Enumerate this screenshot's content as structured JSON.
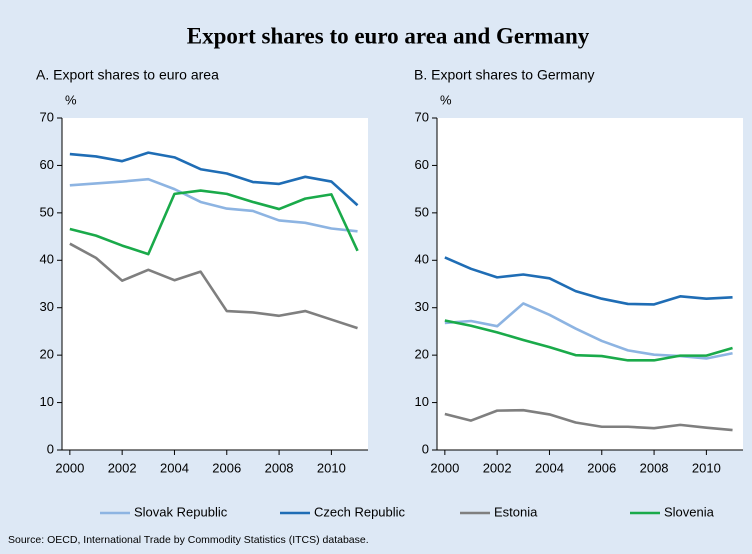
{
  "title": "Export shares to euro area and Germany",
  "source": "Source: OECD, International Trade by Commodity Statistics (ITCS) database.",
  "chart_data": [
    {
      "type": "line",
      "title": "A. Export shares to euro area",
      "ylabel": "%",
      "x": [
        2000,
        2001,
        2002,
        2003,
        2004,
        2005,
        2006,
        2007,
        2008,
        2009,
        2010,
        2011
      ],
      "xlim": [
        1999.7,
        2011.4
      ],
      "xticks": [
        2000,
        2002,
        2004,
        2006,
        2008,
        2010
      ],
      "ylim": [
        0,
        70
      ],
      "yticks": [
        0,
        10,
        20,
        30,
        40,
        50,
        60,
        70
      ],
      "series": [
        {
          "name": "Slovak Republic",
          "color": "#8db4e2",
          "values": [
            55.8,
            56.2,
            56.6,
            57.1,
            55.0,
            52.3,
            50.9,
            50.4,
            48.4,
            47.9,
            46.7,
            46.1
          ]
        },
        {
          "name": "Czech Republic",
          "color": "#1f6db5",
          "values": [
            62.4,
            61.9,
            60.9,
            62.7,
            61.7,
            59.2,
            58.3,
            56.5,
            56.1,
            57.6,
            56.6,
            51.6
          ]
        },
        {
          "name": "Estonia",
          "color": "#7f7f7f",
          "values": [
            43.5,
            40.5,
            35.7,
            38.0,
            35.8,
            37.6,
            29.3,
            29.0,
            28.3,
            29.3,
            27.5,
            25.7
          ]
        },
        {
          "name": "Slovenia",
          "color": "#1aaa4a",
          "values": [
            46.6,
            45.2,
            43.1,
            41.3,
            54.0,
            54.7,
            54.0,
            52.3,
            50.8,
            53.0,
            53.9,
            42.0
          ]
        }
      ]
    },
    {
      "type": "line",
      "title": "B. Export shares to Germany",
      "ylabel": "%",
      "x": [
        2000,
        2001,
        2002,
        2003,
        2004,
        2005,
        2006,
        2007,
        2008,
        2009,
        2010,
        2011
      ],
      "xlim": [
        1999.7,
        2011.4
      ],
      "xticks": [
        2000,
        2002,
        2004,
        2006,
        2008,
        2010
      ],
      "ylim": [
        0,
        70
      ],
      "yticks": [
        0,
        10,
        20,
        30,
        40,
        50,
        60,
        70
      ],
      "series": [
        {
          "name": "Slovak Republic",
          "color": "#8db4e2",
          "values": [
            26.8,
            27.2,
            26.1,
            30.9,
            28.5,
            25.6,
            23.0,
            21.0,
            20.1,
            19.8,
            19.3,
            20.4
          ]
        },
        {
          "name": "Czech Republic",
          "color": "#1f6db5",
          "values": [
            40.6,
            38.2,
            36.4,
            37.0,
            36.2,
            33.5,
            31.9,
            30.8,
            30.7,
            32.4,
            31.9,
            32.2
          ]
        },
        {
          "name": "Estonia",
          "color": "#7f7f7f",
          "values": [
            7.6,
            6.2,
            8.3,
            8.4,
            7.5,
            5.8,
            4.9,
            4.9,
            4.6,
            5.3,
            4.7,
            4.2
          ]
        },
        {
          "name": "Slovenia",
          "color": "#1aaa4a",
          "values": [
            27.3,
            26.2,
            24.8,
            23.2,
            21.7,
            20.0,
            19.8,
            18.9,
            18.9,
            19.9,
            19.9,
            21.5
          ]
        }
      ]
    }
  ]
}
